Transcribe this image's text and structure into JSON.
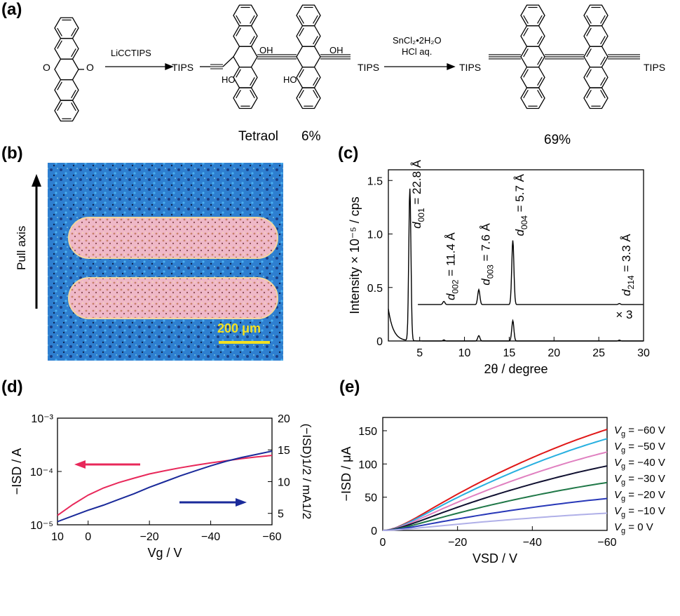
{
  "panels": {
    "a": "(a)",
    "b": "(b)",
    "c": "(c)",
    "d": "(d)",
    "e": "(e)"
  },
  "scheme": {
    "reagent1": "LiCCTIPS",
    "reagent2_line1": "SnCl₂•2H₂O",
    "reagent2_line2": "HCl aq.",
    "tips": "TIPS",
    "oh": "OH",
    "ho": "HO",
    "o": "O",
    "tetraol_label": "Tetraol",
    "yield1": "6%",
    "yield2": "69%"
  },
  "micrograph": {
    "pull_axis": "Pull axis",
    "scalebar": "200 μm"
  },
  "colors": {
    "pink": "#e8285a",
    "navy": "#1a2a9a",
    "red": "#e01818",
    "cyan": "#28b0e0",
    "pinkish": "#e080c0",
    "black": "#101030",
    "green": "#207848",
    "blue": "#2838b8",
    "lavender": "#b0b0e8"
  },
  "chart_data": [
    {
      "panel": "c",
      "type": "line",
      "xlabel": "2θ / degree",
      "ylabel": "Intensity × 10⁻⁵ / cps",
      "xlim": [
        1.5,
        30
      ],
      "ylim": [
        0,
        1.6
      ],
      "xticks": [
        "5",
        "10",
        "15",
        "20",
        "25",
        "30"
      ],
      "yticks": [
        "0",
        "0.5",
        "1.0",
        "1.5"
      ],
      "peaks": [
        {
          "label": "d001 = 22.8 Å",
          "sub": "001",
          "value": "22.8 Å",
          "x": 3.9,
          "y_lower": 1.42
        },
        {
          "label": "d002 = 11.4 Å",
          "sub": "002",
          "value": "11.4 Å",
          "x": 7.7,
          "y_lower": 0.01
        },
        {
          "label": "d003 = 7.6 Å",
          "sub": "003",
          "value": "7.6 Å",
          "x": 11.6,
          "y_lower": 0.05
        },
        {
          "label": "d004 = 5.7 Å",
          "sub": "004",
          "value": "5.7 Å",
          "x": 15.4,
          "y_lower": 0.19
        },
        {
          "label": "d214 = 3.3 Å",
          "sub": "214",
          "value": "3.3 Å",
          "x": 27.3,
          "y_lower": 0.0
        }
      ],
      "upper_trace_offset": 0.34,
      "upper_trace_peaks": [
        {
          "x": 7.7,
          "h": 0.03
        },
        {
          "x": 11.6,
          "h": 0.14
        },
        {
          "x": 15.4,
          "h": 0.6
        },
        {
          "x": 27.3,
          "h": 0.01
        }
      ],
      "scale_note": "× 3"
    },
    {
      "panel": "d",
      "type": "line",
      "xlabel": "Vg / V",
      "ylabel_left": "−ISD / A",
      "ylabel_right": "(−ISD)1/2 / mA1/2",
      "xlim": [
        10,
        -60
      ],
      "ylim_left_log": [
        -5,
        -3
      ],
      "ylim_right": [
        3.2,
        20
      ],
      "xticks": [
        "10",
        "0",
        "−20",
        "−40",
        "−60"
      ],
      "yticks_left": [
        "10⁻⁵",
        "10⁻⁴",
        "10⁻³"
      ],
      "yticks_right": [
        "5",
        "10",
        "15",
        "20"
      ],
      "series": [
        {
          "axis": "left",
          "color": "pink",
          "x": [
            10,
            5,
            0,
            -5,
            -10,
            -15,
            -20,
            -25,
            -30,
            -35,
            -40,
            -45,
            -50,
            -55,
            -60
          ],
          "y": [
            1.5e-05,
            2.4e-05,
            3.6e-05,
            4.9e-05,
            6.2e-05,
            7.5e-05,
            9e-05,
            0.000103,
            0.000117,
            0.000131,
            0.000145,
            0.000159,
            0.000174,
            0.000187,
            0.0002
          ]
        },
        {
          "axis": "right",
          "color": "navy",
          "x": [
            10,
            5,
            0,
            -5,
            -10,
            -15,
            -20,
            -25,
            -30,
            -35,
            -40,
            -45,
            -50,
            -55,
            -60
          ],
          "y": [
            3.7,
            4.6,
            5.5,
            6.3,
            7.2,
            8.1,
            9.1,
            10.0,
            10.9,
            11.7,
            12.5,
            13.2,
            13.8,
            14.3,
            14.8
          ]
        }
      ],
      "arrows": [
        {
          "color": "pink",
          "direction": "left"
        },
        {
          "color": "navy",
          "direction": "right"
        }
      ]
    },
    {
      "panel": "e",
      "type": "line",
      "xlabel": "VSD / V",
      "ylabel": "−ISD / μA",
      "xlim": [
        0,
        -60
      ],
      "ylim": [
        0,
        170
      ],
      "xticks": [
        "0",
        "−20",
        "−40",
        "−60"
      ],
      "yticks": [
        "0",
        "50",
        "100",
        "150"
      ],
      "series": [
        {
          "name": "Vg = −60 V",
          "vg": "−60 V",
          "color": "red",
          "max": 152
        },
        {
          "name": "Vg = −50 V",
          "vg": "−50 V",
          "color": "cyan",
          "max": 138
        },
        {
          "name": "Vg = −40 V",
          "vg": "−40 V",
          "color": "pinkish",
          "max": 118
        },
        {
          "name": "Vg = −30 V",
          "vg": "−30 V",
          "color": "black",
          "max": 97
        },
        {
          "name": "Vg = −20 V",
          "vg": "−20 V",
          "color": "green",
          "max": 72
        },
        {
          "name": "Vg = −10 V",
          "vg": "−10 V",
          "color": "blue",
          "max": 48
        },
        {
          "name": "Vg = 0 V",
          "vg": "0 V",
          "color": "lavender",
          "max": 26
        }
      ]
    }
  ]
}
